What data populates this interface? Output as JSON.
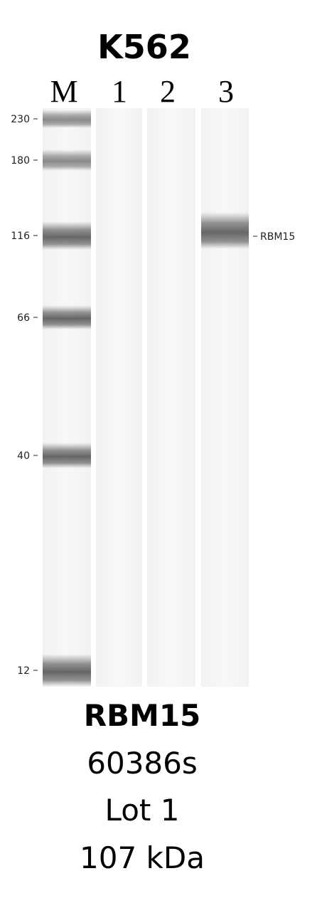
{
  "header": {
    "title": "K562"
  },
  "lanes": [
    "M",
    "1",
    "2",
    "3"
  ],
  "markers": [
    "230",
    "180",
    "116",
    "66",
    "40",
    "12"
  ],
  "band_label": "RBM15",
  "footer": {
    "target": "RBM15",
    "catalog": "60386s",
    "lot": "Lot 1",
    "mw": "107 kDa"
  }
}
